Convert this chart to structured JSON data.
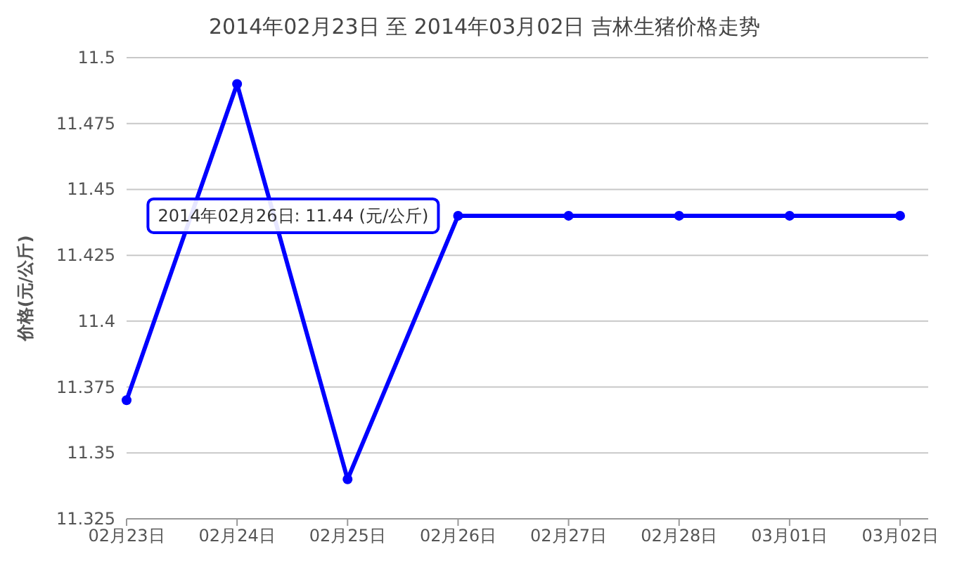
{
  "chart_data": {
    "type": "line",
    "title": "2014年02月23日 至 2014年03月02日 吉林生猪价格走势",
    "ylabel": "价格(元/公斤)",
    "categories": [
      "02月23日",
      "02月24日",
      "02月25日",
      "02月26日",
      "02月27日",
      "02月28日",
      "03月01日",
      "03月02日"
    ],
    "series": [
      {
        "color": "#0000ff",
        "values": [
          11.37,
          11.49,
          11.34,
          11.44,
          11.44,
          11.44,
          11.44,
          11.44
        ]
      }
    ],
    "ylim": [
      11.325,
      11.5
    ],
    "yticks": [
      11.325,
      11.35,
      11.375,
      11.4,
      11.425,
      11.45,
      11.475,
      11.5
    ],
    "grid": "y",
    "marker": "circle",
    "line_style": "solid",
    "annotations": [
      {
        "text": "2014年02月26日: 11.44 (元/公斤)",
        "x": "02月26日",
        "y": 11.44
      }
    ]
  }
}
